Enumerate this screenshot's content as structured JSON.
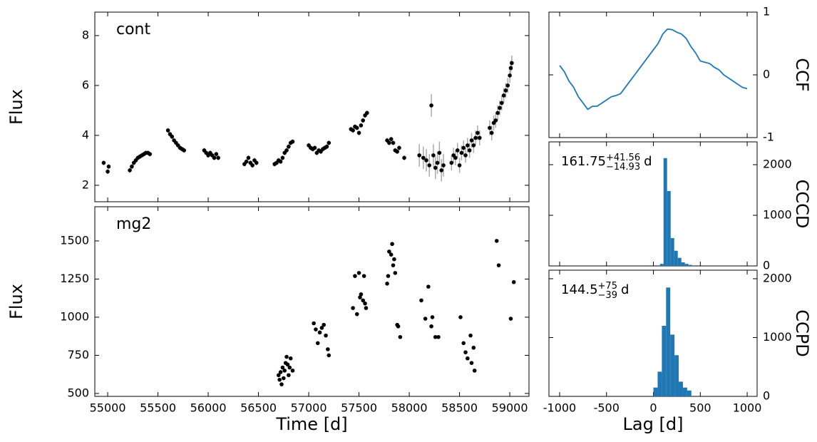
{
  "chart_data": [
    {
      "type": "errorbar",
      "label": "cont",
      "ylabel": "Flux",
      "color": "#000000",
      "error_color": "#aaaaaa",
      "x": [
        54960,
        55000,
        55010,
        55220,
        55240,
        55260,
        55280,
        55300,
        55320,
        55340,
        55360,
        55380,
        55400,
        55420,
        55600,
        55620,
        55640,
        55660,
        55680,
        55700,
        55720,
        55740,
        55760,
        55960,
        55980,
        56000,
        56020,
        56040,
        56060,
        56080,
        56100,
        56360,
        56380,
        56400,
        56420,
        56440,
        56460,
        56480,
        56660,
        56680,
        56700,
        56720,
        56740,
        56760,
        56780,
        56800,
        56820,
        56840,
        57000,
        57020,
        57040,
        57060,
        57080,
        57100,
        57120,
        57140,
        57160,
        57180,
        57200,
        57420,
        57440,
        57460,
        57480,
        57500,
        57520,
        57540,
        57560,
        57580,
        57780,
        57800,
        57820,
        57840,
        57860,
        57880,
        57900,
        57950,
        58100,
        58140,
        58170,
        58200,
        58220,
        58240,
        58260,
        58280,
        58300,
        58320,
        58340,
        58420,
        58440,
        58460,
        58480,
        58500,
        58520,
        58540,
        58560,
        58580,
        58600,
        58620,
        58640,
        58660,
        58680,
        58700,
        58800,
        58820,
        58840,
        58860,
        58880,
        58900,
        58920,
        58940,
        58960,
        58980,
        59000,
        59010,
        59020
      ],
      "y": [
        2.9,
        2.55,
        2.75,
        2.6,
        2.75,
        2.9,
        3.0,
        3.1,
        3.15,
        3.2,
        3.25,
        3.3,
        3.3,
        3.25,
        4.2,
        4.05,
        3.95,
        3.8,
        3.7,
        3.6,
        3.5,
        3.45,
        3.4,
        3.4,
        3.3,
        3.2,
        3.3,
        3.2,
        3.1,
        3.25,
        3.1,
        2.85,
        2.95,
        3.1,
        2.9,
        2.8,
        3.0,
        2.9,
        2.85,
        2.9,
        3.0,
        2.95,
        3.1,
        3.3,
        3.4,
        3.55,
        3.7,
        3.75,
        3.6,
        3.5,
        3.45,
        3.5,
        3.3,
        3.4,
        3.35,
        3.45,
        3.5,
        3.55,
        3.7,
        4.25,
        4.2,
        4.35,
        4.3,
        4.1,
        4.4,
        4.6,
        4.8,
        4.9,
        3.8,
        3.7,
        3.85,
        3.7,
        3.4,
        3.35,
        3.5,
        3.1,
        3.2,
        3.1,
        3.0,
        2.8,
        5.2,
        3.2,
        2.7,
        2.9,
        3.3,
        2.6,
        2.8,
        2.9,
        3.2,
        3.1,
        3.4,
        2.8,
        3.3,
        3.5,
        3.2,
        3.6,
        3.4,
        3.8,
        3.6,
        3.9,
        4.1,
        3.9,
        4.3,
        4.1,
        4.5,
        4.6,
        4.9,
        5.1,
        5.3,
        5.6,
        5.8,
        6.0,
        6.4,
        6.7,
        6.9
      ],
      "errors": [
        0.1,
        0.1,
        0.1,
        0.1,
        0.1,
        0.1,
        0.1,
        0.1,
        0.1,
        0.1,
        0.1,
        0.1,
        0.1,
        0.1,
        0.1,
        0.1,
        0.1,
        0.1,
        0.1,
        0.1,
        0.1,
        0.1,
        0.1,
        0.1,
        0.1,
        0.1,
        0.1,
        0.1,
        0.1,
        0.1,
        0.1,
        0.1,
        0.1,
        0.1,
        0.1,
        0.1,
        0.1,
        0.1,
        0.1,
        0.1,
        0.1,
        0.1,
        0.1,
        0.1,
        0.1,
        0.1,
        0.1,
        0.1,
        0.1,
        0.1,
        0.1,
        0.1,
        0.1,
        0.1,
        0.1,
        0.1,
        0.1,
        0.1,
        0.1,
        0.1,
        0.1,
        0.1,
        0.1,
        0.1,
        0.1,
        0.1,
        0.1,
        0.1,
        0.1,
        0.1,
        0.1,
        0.1,
        0.1,
        0.1,
        0.1,
        0.1,
        0.45,
        0.45,
        0.45,
        0.45,
        0.45,
        0.45,
        0.45,
        0.45,
        0.45,
        0.45,
        0.45,
        0.3,
        0.3,
        0.3,
        0.3,
        0.3,
        0.3,
        0.3,
        0.3,
        0.3,
        0.3,
        0.3,
        0.3,
        0.3,
        0.3,
        0.3,
        0.3,
        0.3,
        0.3,
        0.3,
        0.3,
        0.3,
        0.3,
        0.3,
        0.3,
        0.3,
        0.3,
        0.3,
        0.3
      ],
      "ylim": [
        1.34,
        8.94
      ],
      "yticks": [
        2,
        4,
        6,
        8
      ]
    },
    {
      "type": "errorbar",
      "label": "mg2",
      "ylabel": "Flux",
      "xlabel": "Time [d]",
      "color": "#000000",
      "x": [
        56700,
        56710,
        56720,
        56730,
        56740,
        56750,
        56760,
        56770,
        56780,
        56790,
        56800,
        56810,
        56820,
        56840,
        57050,
        57070,
        57090,
        57110,
        57130,
        57150,
        57170,
        57190,
        57200,
        57440,
        57460,
        57480,
        57500,
        57510,
        57520,
        57540,
        57550,
        57560,
        57570,
        57780,
        57790,
        57800,
        57820,
        57830,
        57840,
        57850,
        57860,
        57880,
        57890,
        57910,
        58120,
        58160,
        58190,
        58220,
        58230,
        58260,
        58290,
        58510,
        58540,
        58560,
        58580,
        58610,
        58620,
        58640,
        58650,
        58870,
        58890,
        59010,
        59040
      ],
      "y": [
        620,
        590,
        640,
        560,
        670,
        600,
        650,
        700,
        740,
        690,
        620,
        670,
        730,
        650,
        960,
        920,
        830,
        900,
        930,
        950,
        880,
        790,
        750,
        1060,
        1270,
        1020,
        1290,
        1130,
        1150,
        1110,
        1270,
        1090,
        1060,
        1220,
        1270,
        1430,
        1410,
        1480,
        1340,
        1380,
        1290,
        950,
        940,
        870,
        1110,
        990,
        1200,
        940,
        1000,
        870,
        870,
        1000,
        830,
        770,
        730,
        880,
        700,
        800,
        650,
        1500,
        1340,
        990,
        1230
      ],
      "xlim": [
        54872,
        59191
      ],
      "xticks": [
        55000,
        55500,
        56000,
        56500,
        57000,
        57500,
        58000,
        58500,
        59000
      ],
      "ylim": [
        481,
        1724
      ],
      "yticks": [
        500,
        750,
        1000,
        1250,
        1500
      ]
    },
    {
      "type": "line",
      "ylabel": "CCF",
      "color": "#1f77b4",
      "x": [
        -1000,
        -950,
        -900,
        -850,
        -800,
        -750,
        -700,
        -650,
        -600,
        -550,
        -500,
        -450,
        -400,
        -350,
        -300,
        -250,
        -200,
        -150,
        -100,
        -50,
        0,
        50,
        100,
        150,
        200,
        250,
        300,
        350,
        400,
        450,
        500,
        550,
        600,
        650,
        700,
        750,
        800,
        850,
        900,
        950,
        1000
      ],
      "y": [
        0.15,
        0.05,
        -0.1,
        -0.2,
        -0.35,
        -0.45,
        -0.55,
        -0.5,
        -0.5,
        -0.45,
        -0.4,
        -0.35,
        -0.33,
        -0.3,
        -0.2,
        -0.1,
        0.0,
        0.1,
        0.2,
        0.3,
        0.4,
        0.5,
        0.65,
        0.73,
        0.72,
        0.68,
        0.65,
        0.58,
        0.45,
        0.35,
        0.22,
        0.2,
        0.18,
        0.12,
        0.08,
        0.0,
        -0.05,
        -0.1,
        -0.15,
        -0.2,
        -0.22
      ],
      "ylim": [
        -1,
        1
      ],
      "yticks": [
        -1,
        0,
        1
      ]
    },
    {
      "type": "histogram",
      "ylabel": "CCCD",
      "color": "#1f77b4",
      "annotation": {
        "value": "161.75",
        "upper": "+41.56",
        "lower": "−14.93",
        "unit": "d"
      },
      "bins": [
        70,
        108,
        146,
        184,
        222,
        260,
        298,
        336,
        374,
        412
      ],
      "values": [
        40,
        2130,
        1480,
        550,
        300,
        160,
        70,
        40,
        20
      ],
      "ylim": [
        0,
        2451
      ],
      "yticks": [
        0,
        1000,
        2000
      ]
    },
    {
      "type": "histogram",
      "ylabel": "CCPD",
      "xlabel": "Lag [d]",
      "color": "#1f77b4",
      "annotation": {
        "value": "144.5",
        "upper": "+75",
        "lower": "−39",
        "unit": "d"
      },
      "bins": [
        0,
        45,
        90,
        135,
        180,
        225,
        270,
        315,
        360,
        405
      ],
      "values": [
        150,
        420,
        1200,
        1850,
        1050,
        700,
        250,
        150,
        100
      ],
      "xlim": [
        -1114,
        1106
      ],
      "xticks": [
        -1000,
        -500,
        0,
        500,
        1000
      ],
      "ylim": [
        0,
        2145
      ],
      "yticks": [
        0,
        1000,
        2000
      ]
    }
  ]
}
